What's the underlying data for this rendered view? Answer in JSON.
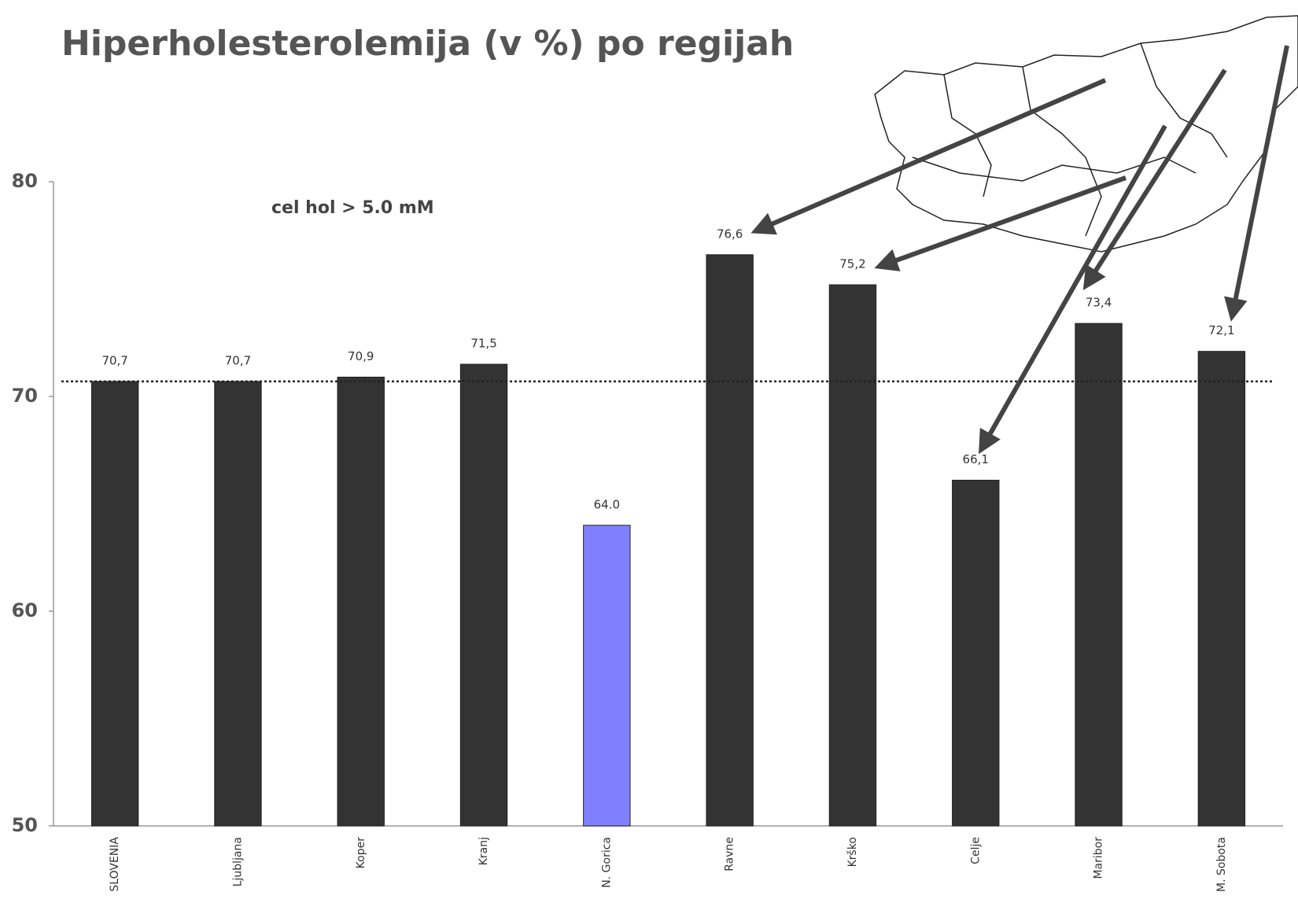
{
  "chart_data": {
    "type": "bar",
    "title": "Hiperholesterolemija (v %) po regijah",
    "annotation": "cel hol > 5.0 mM",
    "categories": [
      "SLOVENIA",
      "Ljubljana",
      "Koper",
      "Kranj",
      "N. Gorica",
      "Ravne",
      "Krško",
      "Celje",
      "Maribor",
      "M. Sobota"
    ],
    "values": [
      70.7,
      70.7,
      70.9,
      71.5,
      64.0,
      76.6,
      75.2,
      66.1,
      73.4,
      72.1
    ],
    "value_labels": [
      "70,7",
      "70,7",
      "70,9",
      "71,5",
      "64.0",
      "76,6",
      "75,2",
      "66,1",
      "73,4",
      "72,1"
    ],
    "colors": [
      "#333333",
      "#333333",
      "#333333",
      "#333333",
      "#8080ff",
      "#333333",
      "#333333",
      "#333333",
      "#333333",
      "#333333"
    ],
    "reference_line": 70.7,
    "ylim": [
      50,
      80
    ],
    "yticks": [
      50,
      60,
      70,
      80
    ],
    "grid": false
  }
}
